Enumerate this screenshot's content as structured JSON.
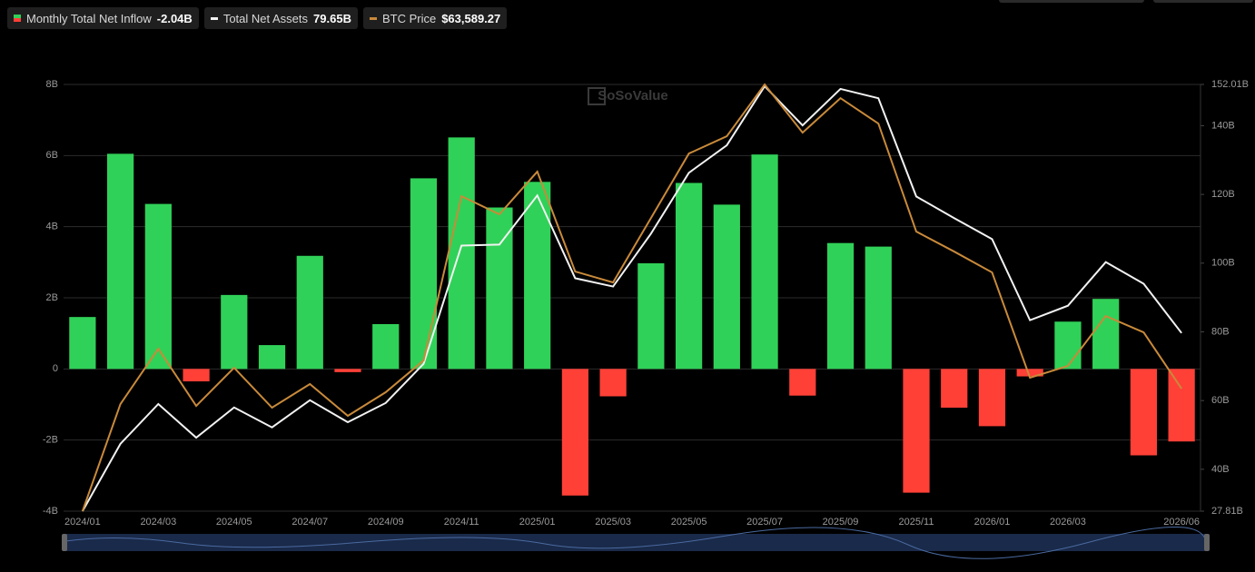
{
  "chart_data": {
    "type": "bar-line",
    "watermark": "SoSoValue",
    "categories": [
      "2024/01",
      null,
      "2024/03",
      null,
      "2024/05",
      null,
      "2024/07",
      null,
      "2024/09",
      null,
      "2024/11",
      null,
      "2025/01",
      null,
      "2025/03",
      null,
      "2025/05",
      null,
      "2025/07",
      null,
      "2025/09",
      null,
      "2025/11",
      null,
      "2026/01",
      null,
      "2026/03",
      null,
      null,
      "2026/06"
    ],
    "series": [
      {
        "name": "Monthly Total Net Inflow",
        "latest_label": "-2.04B",
        "type": "bar",
        "color": "#30d158",
        "negative_color": "#ff4037",
        "values": [
          1.46,
          6.05,
          4.64,
          -0.35,
          2.08,
          0.67,
          3.18,
          -0.09,
          1.26,
          5.36,
          6.51,
          4.54,
          5.26,
          -3.56,
          -0.77,
          2.97,
          5.23,
          4.62,
          6.03,
          -0.75,
          3.54,
          3.44,
          -3.48,
          -1.09,
          -1.61,
          -0.21,
          1.33,
          1.97,
          -2.43,
          -2.04
        ]
      },
      {
        "name": "Total Net Assets",
        "latest_label": "79.65B",
        "type": "line",
        "axis": "y2",
        "color": "#f2f2f2",
        "values": [
          27.81,
          47.4,
          59.0,
          49.2,
          58.0,
          52.2,
          60.1,
          53.7,
          59.3,
          70.7,
          105.1,
          105.4,
          119.7,
          95.6,
          93.2,
          108.6,
          126.3,
          134.3,
          151.5,
          140.1,
          150.7,
          148.0,
          119.4,
          113.1,
          107.0,
          83.4,
          87.6,
          100.3,
          94.0,
          79.65
        ]
      },
      {
        "name": "BTC Price",
        "latest_label": "$63,589.27",
        "type": "line",
        "axis": "y3",
        "color": "#c98a3a",
        "values": [
          42582,
          60955,
          70452,
          60643,
          67182,
          60332,
          64380,
          58931,
          62979,
          68428,
          96610,
          93496,
          100814,
          83687,
          81818,
          92873,
          103928,
          106886,
          115777,
          107509,
          113426,
          109066,
          90538,
          87112,
          83531,
          65470,
          67494,
          76058,
          73255,
          63589.27
        ]
      }
    ],
    "ylim": [
      -4,
      8
    ],
    "yticks": [
      {
        "value": -4,
        "label": "-4B"
      },
      {
        "value": -2,
        "label": "-2B"
      },
      0,
      {
        "value": 2,
        "label": "2B"
      },
      {
        "value": 4,
        "label": "4B"
      },
      {
        "value": 6,
        "label": "6B"
      },
      {
        "value": 8,
        "label": "8B"
      }
    ],
    "y2lim": [
      27.81,
      152.01
    ],
    "y2ticks": [
      {
        "value": 27.81,
        "label": "27.81B"
      },
      {
        "value": 40,
        "label": "40B"
      },
      {
        "value": 60,
        "label": "60B"
      },
      {
        "value": 80,
        "label": "80B"
      },
      {
        "value": 100,
        "label": "100B"
      },
      {
        "value": 120,
        "label": "120B"
      },
      {
        "value": 140,
        "label": "140B"
      },
      {
        "value": 152.01,
        "label": "152.01B"
      }
    ],
    "y3lim": [
      42582,
      115777
    ],
    "grid": true
  }
}
